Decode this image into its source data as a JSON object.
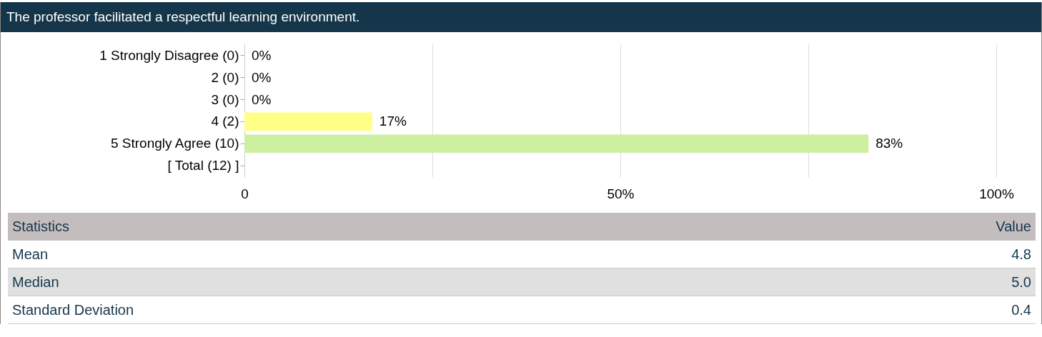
{
  "chart_data": [
    {
      "type": "bar",
      "orientation": "horizontal",
      "title": "The professor facilitated a respectful learning environment.",
      "categories": [
        "1 Strongly Disagree (0)",
        "2 (0)",
        "3 (0)",
        "4 (2)",
        "5 Strongly Agree (10)",
        "[ Total (12) ]"
      ],
      "values": [
        0,
        0,
        0,
        17,
        83,
        null
      ],
      "colors": [
        "#ffff88",
        "#ffff88",
        "#ffff88",
        "#ffff88",
        "#ccf0a0",
        "#ccf0a0"
      ],
      "value_labels": [
        "0%",
        "0%",
        "0%",
        "17%",
        "83%",
        null
      ],
      "xlim": [
        0,
        100
      ],
      "xticks": [
        {
          "value": 0,
          "label": "0"
        },
        {
          "value": 25,
          "label": null
        },
        {
          "value": 50,
          "label": "50%"
        },
        {
          "value": 75,
          "label": null
        },
        {
          "value": 100,
          "label": "100%"
        }
      ],
      "grid": "x"
    },
    {
      "type": "other",
      "annotations": [
        "Statistics",
        "Value"
      ],
      "categories": [
        "Mean",
        "Median",
        "Standard Deviation"
      ],
      "value_labels": [
        "4.8",
        "5.0",
        "0.4"
      ]
    }
  ]
}
